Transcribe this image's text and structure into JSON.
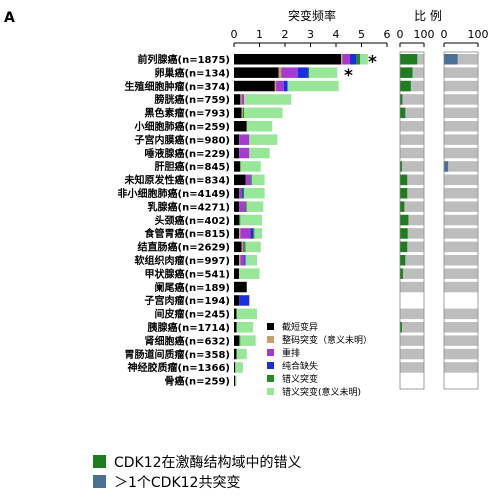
{
  "panel_label": "A",
  "chart_data": {
    "type": "bar",
    "titles": {
      "freq": "突变频率",
      "ratio": "比 例"
    },
    "freq_ticks": [
      "0",
      "1",
      "2",
      "3",
      "4",
      "5",
      "6"
    ],
    "freq_xlim": [
      0,
      6
    ],
    "ratio_ticks": [
      "0",
      "100"
    ],
    "categories": [
      "前列腺癌(n=1875)",
      "卵巢癌(n=134)",
      "生殖细胞肿瘤(n=374)",
      "膀胱癌(n=759)",
      "黑色素瘤(n=793)",
      "小细胞肺癌(n=259)",
      "子宫内膜癌(n=980)",
      "唾液腺癌(n=229)",
      "肝胆癌(n=845)",
      "未知原发性癌(n=834)",
      "非小细胞肺癌(n=4149)",
      "乳腺癌(n=4271)",
      "头颈癌(n=402)",
      "食管胃癌(n=815)",
      "结直肠癌(n=2629)",
      "软组织肉瘤(n=997)",
      "甲状腺癌(n=541)",
      "阑尾癌(n=189)",
      "子宫肉瘤(n=194)",
      "间皮瘤(n=245)",
      "胰腺癌(n=1714)",
      "肾细胞癌(n=632)",
      "胃肠道间质瘤(n=358)",
      "神经胶质瘤(n=1366)",
      "骨癌(n=259)"
    ],
    "series": [
      {
        "name": "截短变异",
        "color": "#000000",
        "values": [
          4.2,
          1.75,
          1.6,
          0.25,
          0.3,
          0.5,
          0.2,
          0.2,
          0.25,
          0.45,
          0.2,
          0.2,
          0.2,
          0.2,
          0.3,
          0.2,
          0.2,
          0.5,
          0.2,
          0.1,
          0.1,
          0.2,
          0.1,
          0.05,
          0.05
        ]
      },
      {
        "name": "整码突变（意义未明）",
        "color": "#c8a064",
        "values": [
          0.05,
          0.1,
          0.05,
          0.05,
          0.05,
          0,
          0,
          0,
          0,
          0,
          0,
          0,
          0,
          0.05,
          0.05,
          0.05,
          0,
          0,
          0,
          0,
          0,
          0,
          0,
          0,
          0
        ]
      },
      {
        "name": "重排",
        "color": "#a63ad0",
        "values": [
          0.3,
          0.65,
          0.3,
          0.1,
          0,
          0,
          0.4,
          0.4,
          0,
          0.2,
          0.1,
          0.25,
          0,
          0.4,
          0.05,
          0.15,
          0,
          0,
          0,
          0,
          0,
          0,
          0,
          0,
          0
        ]
      },
      {
        "name": "纯合缺失",
        "color": "#1a2ee0",
        "values": [
          0.25,
          0.4,
          0.15,
          0,
          0,
          0,
          0,
          0,
          0,
          0,
          0.05,
          0,
          0,
          0.1,
          0,
          0.05,
          0,
          0,
          0.4,
          0,
          0,
          0,
          0,
          0,
          0
        ]
      },
      {
        "name": "错义突变",
        "color": "#228b22",
        "values": [
          0.15,
          0.05,
          0,
          0,
          0.05,
          0,
          0,
          0,
          0,
          0.05,
          0.05,
          0.05,
          0.05,
          0.05,
          0.05,
          0,
          0,
          0,
          0,
          0,
          0,
          0.05,
          0,
          0,
          0
        ]
      },
      {
        "name": "错义突变(意义未明)",
        "color": "#98e698",
        "values": [
          0.3,
          1.1,
          2.0,
          1.85,
          1.5,
          1.0,
          1.1,
          0.8,
          0.8,
          0.5,
          0.8,
          0.65,
          0.85,
          0.3,
          0.6,
          0.45,
          0.8,
          0,
          0,
          0.8,
          0.65,
          0.6,
          0.4,
          0.3,
          0.05
        ]
      }
    ],
    "ratio_series": [
      {
        "name": "CDK12在激酶结构域中的错义",
        "color": "#1e7d1e",
        "values": [
          45,
          0,
          0,
          0,
          0,
          0,
          0,
          0,
          0,
          0,
          0,
          0,
          0,
          0,
          0,
          0,
          0,
          0,
          0,
          0,
          0,
          0,
          0,
          0,
          0
        ]
      },
      {
        "name": ">1个CDK12共突变",
        "color": "#4c6f94",
        "values": [
          5,
          0,
          0,
          0,
          0,
          0,
          0,
          0,
          0,
          0,
          0,
          0,
          0,
          0,
          0,
          0,
          0,
          0,
          0,
          0,
          0,
          0,
          0,
          0,
          0
        ]
      }
    ],
    "ratio_left": {
      "green": [
        72,
        52,
        45,
        10,
        22,
        0,
        0,
        0,
        8,
        30,
        30,
        18,
        35,
        32,
        30,
        22,
        12,
        0,
        0,
        0,
        8,
        0,
        0,
        0,
        0
      ],
      "blue": [
        0,
        0,
        0,
        0,
        0,
        0,
        0,
        0,
        0,
        0,
        0,
        0,
        0,
        0,
        0,
        0,
        0,
        0,
        0,
        0,
        0,
        0,
        0,
        0,
        0
      ],
      "gray_full": [
        1,
        1,
        1,
        1,
        1,
        1,
        1,
        1,
        1,
        1,
        1,
        1,
        1,
        1,
        1,
        1,
        1,
        1,
        0,
        1,
        1,
        1,
        1,
        1,
        0
      ]
    },
    "ratio_right": {
      "green": [
        0,
        0,
        0,
        0,
        0,
        0,
        0,
        0,
        0,
        0,
        0,
        0,
        0,
        0,
        0,
        0,
        0,
        0,
        0,
        0,
        0,
        0,
        0,
        0,
        0
      ],
      "blue": [
        40,
        0,
        0,
        0,
        0,
        0,
        0,
        0,
        12,
        0,
        0,
        0,
        0,
        0,
        0,
        0,
        0,
        0,
        0,
        0,
        0,
        0,
        0,
        0,
        0
      ],
      "gray_full": [
        1,
        1,
        1,
        1,
        1,
        1,
        1,
        1,
        1,
        1,
        1,
        1,
        1,
        1,
        1,
        1,
        1,
        1,
        0,
        1,
        1,
        1,
        1,
        1,
        0
      ]
    },
    "stars": [
      "*",
      "*"
    ],
    "legend_inner": [
      {
        "label": "截短变异",
        "color": "#000000"
      },
      {
        "label": "整码突变（意义未明）",
        "color": "#c8a064"
      },
      {
        "label": "重排",
        "color": "#a63ad0"
      },
      {
        "label": "纯合缺失",
        "color": "#1a2ee0"
      },
      {
        "label": "错义突变",
        "color": "#228b22"
      },
      {
        "label": "错义突变(意义未明)",
        "color": "#98e698"
      }
    ]
  },
  "legend_bottom": {
    "item1": "CDK12在激酶结构域中的错义",
    "item2": "＞1个CDK12共突变",
    "color1": "#1e7d1e",
    "color2": "#4c6f94"
  }
}
